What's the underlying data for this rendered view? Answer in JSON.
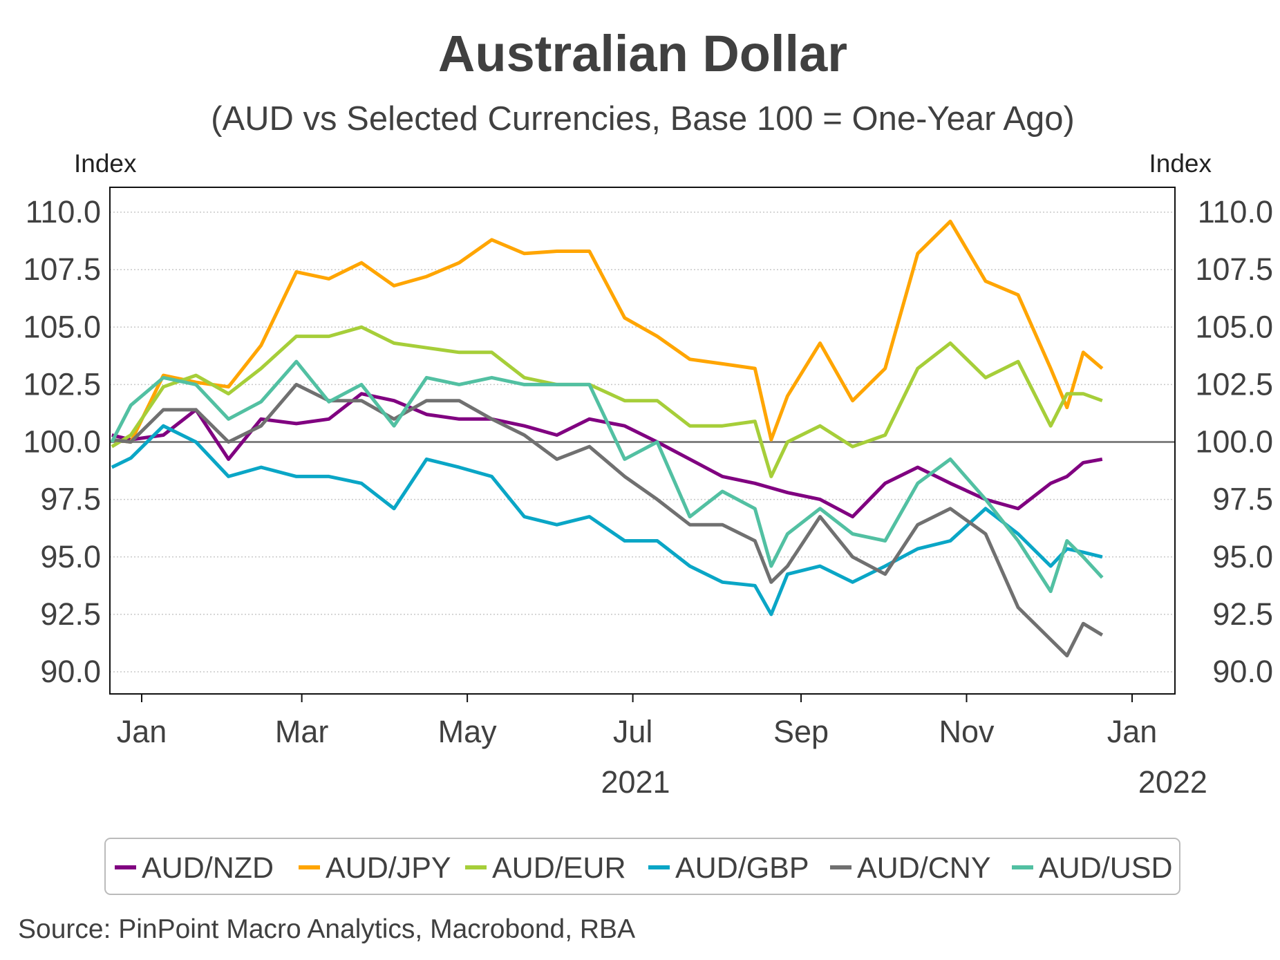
{
  "chart_data": {
    "type": "line",
    "title": "Australian Dollar",
    "subtitle": "(AUD vs Selected Currencies, Base 100 = One-Year Ago)",
    "ylabel_left": "Index",
    "ylabel_right": "Index",
    "ylim": [
      89,
      111
    ],
    "yticks": [
      110.0,
      107.5,
      105.0,
      102.5,
      100.0,
      97.5,
      95.0,
      92.5,
      90.0
    ],
    "ytick_labels": [
      "110.0",
      "107.5",
      "105.0",
      "102.5",
      "100.0",
      "97.5",
      "95.0",
      "92.5",
      "90.0"
    ],
    "xticks": [
      {
        "label": "Jan",
        "day": 0
      },
      {
        "label": "Mar",
        "day": 59
      },
      {
        "label": "May",
        "day": 120
      },
      {
        "label": "Jul",
        "day": 181
      },
      {
        "label": "Sep",
        "day": 243
      },
      {
        "label": "Nov",
        "day": 304
      },
      {
        "label": "Jan",
        "day": 365
      }
    ],
    "year_labels": [
      {
        "label": "2021",
        "day": 182
      },
      {
        "label": "2022",
        "day": 380
      }
    ],
    "x_unit": "days since 1 Jan 2021",
    "xlim": [
      -11,
      370
    ],
    "baseline": 100,
    "grid": true,
    "legend_position": "bottom",
    "x": [
      -11,
      -4,
      8,
      20,
      32,
      44,
      57,
      69,
      81,
      93,
      105,
      117,
      129,
      141,
      153,
      165,
      178,
      190,
      202,
      214,
      226,
      232,
      238,
      250,
      262,
      274,
      286,
      298,
      311,
      323,
      335,
      341,
      347,
      354
    ],
    "series": [
      {
        "name": "AUD/NZD",
        "color": "#800080",
        "values": [
          100.3,
          100.1,
          100.3,
          101.4,
          99.25,
          101.0,
          100.8,
          101.0,
          102.1,
          101.8,
          101.2,
          101.0,
          101.0,
          100.7,
          100.3,
          101.0,
          100.7,
          100.0,
          99.25,
          98.5,
          98.2,
          98.0,
          97.8,
          97.5,
          96.75,
          98.2,
          98.9,
          98.2,
          97.5,
          97.1,
          98.2,
          98.5,
          99.1,
          99.25
        ]
      },
      {
        "name": "AUD/JPY",
        "color": "#FFA500",
        "values": [
          100.1,
          100.0,
          102.9,
          102.6,
          102.4,
          104.2,
          107.4,
          107.1,
          107.8,
          106.8,
          107.2,
          107.8,
          108.8,
          108.2,
          108.3,
          108.3,
          105.4,
          104.6,
          103.6,
          103.4,
          103.2,
          100.1,
          102.0,
          104.3,
          101.8,
          103.2,
          108.2,
          109.6,
          107.0,
          106.4,
          103.2,
          101.5,
          103.9,
          103.2
        ]
      },
      {
        "name": "AUD/EUR",
        "color": "#A6CE39",
        "values": [
          99.8,
          100.3,
          102.4,
          102.9,
          102.1,
          103.2,
          104.6,
          104.6,
          105.0,
          104.3,
          104.1,
          103.9,
          103.9,
          102.8,
          102.5,
          102.5,
          101.8,
          101.8,
          100.7,
          100.7,
          100.9,
          98.5,
          100.0,
          100.7,
          99.8,
          100.3,
          103.2,
          104.3,
          102.8,
          103.5,
          100.7,
          102.1,
          102.1,
          101.8
        ]
      },
      {
        "name": "AUD/GBP",
        "color": "#0AA6C6",
        "values": [
          98.9,
          99.3,
          100.7,
          100.0,
          98.5,
          98.9,
          98.5,
          98.5,
          98.2,
          97.1,
          99.25,
          98.9,
          98.5,
          96.75,
          96.4,
          96.75,
          95.7,
          95.7,
          94.6,
          93.9,
          93.75,
          92.5,
          94.25,
          94.6,
          93.9,
          94.6,
          95.35,
          95.7,
          97.1,
          96.0,
          94.6,
          95.35,
          95.2,
          95.0
        ]
      },
      {
        "name": "AUD/CNY",
        "color": "#707070",
        "values": [
          100.1,
          100.0,
          101.4,
          101.4,
          100.0,
          100.7,
          102.5,
          101.8,
          101.8,
          101.0,
          101.8,
          101.8,
          101.0,
          100.3,
          99.25,
          99.8,
          98.5,
          97.5,
          96.4,
          96.4,
          95.7,
          93.9,
          94.6,
          96.75,
          95.0,
          94.25,
          96.4,
          97.1,
          96.0,
          92.8,
          91.4,
          90.7,
          92.1,
          91.6
        ]
      },
      {
        "name": "AUD/USD",
        "color": "#52C0A2",
        "values": [
          100.0,
          101.6,
          102.8,
          102.5,
          101.0,
          101.75,
          103.5,
          101.75,
          102.5,
          100.7,
          102.8,
          102.5,
          102.8,
          102.5,
          102.5,
          102.5,
          99.25,
          100.0,
          96.75,
          97.85,
          97.1,
          94.6,
          96.0,
          97.1,
          96.0,
          95.7,
          98.2,
          99.25,
          97.5,
          95.7,
          93.5,
          95.7,
          95.0,
          94.1
        ]
      }
    ],
    "source": "Source: PinPoint Macro Analytics, Macrobond, RBA"
  }
}
